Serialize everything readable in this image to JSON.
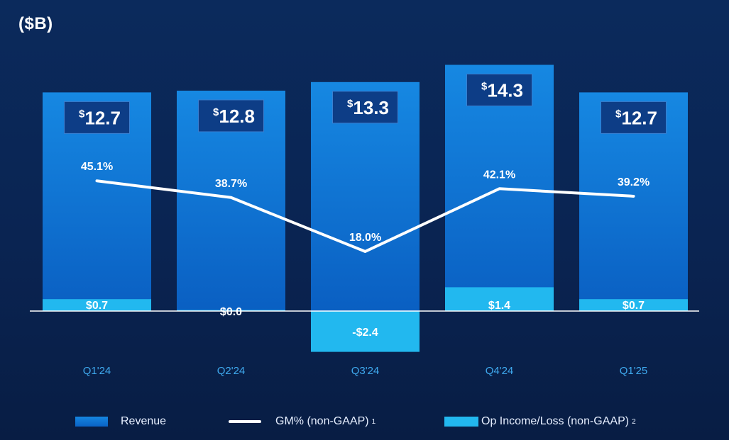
{
  "unit_label": "($B)",
  "legend": {
    "revenue": "Revenue",
    "gm": "GM% (non-GAAP)",
    "gm_sup": "1",
    "op": "Op Income/Loss (non-GAAP)",
    "op_sup": "2"
  },
  "colors": {
    "revenue_top": "#1688e2",
    "revenue_bottom": "#0a5fc2",
    "op_income": "#22b8ef",
    "line": "#ffffff",
    "label_box": "#0d3d86",
    "baseline": "#ffffff"
  },
  "chart_data": {
    "type": "bar",
    "categories": [
      "Q1'24",
      "Q2'24",
      "Q3'24",
      "Q4'24",
      "Q1'25"
    ],
    "series": [
      {
        "name": "Revenue",
        "values": [
          12.7,
          12.8,
          13.3,
          14.3,
          12.7
        ],
        "labels": [
          "12.7",
          "12.8",
          "13.3",
          "14.3",
          "12.7"
        ],
        "currency_symbol": "$"
      },
      {
        "name": "Op Income/Loss (non-GAAP)",
        "values": [
          0.7,
          0.0,
          -2.4,
          1.4,
          0.7
        ],
        "labels": [
          "$0.7",
          "$0.0",
          "-$2.4",
          "$1.4",
          "$0.7"
        ]
      },
      {
        "name": "GM% (non-GAAP)",
        "type": "line",
        "values": [
          45.1,
          38.7,
          18.0,
          42.1,
          39.2
        ],
        "labels": [
          "45.1%",
          "38.7%",
          "18.0%",
          "42.1%",
          "39.2%"
        ]
      }
    ],
    "ylabel": "($B)"
  }
}
